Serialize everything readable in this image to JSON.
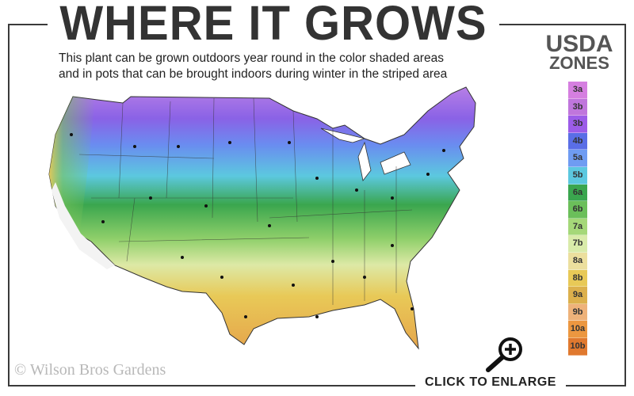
{
  "title": "WHERE IT GROWS",
  "subtitle_line1": "This plant can be grown outdoors year round in the color shaded areas",
  "subtitle_line2": "and in pots that can be brought indoors during winter in the striped area",
  "legend": {
    "title_line1": "USDA",
    "title_line2": "ZONES",
    "zones": [
      {
        "label": "3a",
        "color": "#d57fe0"
      },
      {
        "label": "3b",
        "color": "#c076dc"
      },
      {
        "label": "3b",
        "color": "#9c5ce8"
      },
      {
        "label": "4b",
        "color": "#5a6ee6"
      },
      {
        "label": "5a",
        "color": "#6f9cf2"
      },
      {
        "label": "5b",
        "color": "#5cc8df"
      },
      {
        "label": "6a",
        "color": "#3aa64e"
      },
      {
        "label": "6b",
        "color": "#6bbf5a"
      },
      {
        "label": "7a",
        "color": "#a5d879"
      },
      {
        "label": "7b",
        "color": "#d9ebaa"
      },
      {
        "label": "8a",
        "color": "#ecdf9e"
      },
      {
        "label": "8b",
        "color": "#e8c957"
      },
      {
        "label": "9a",
        "color": "#dcb04c"
      },
      {
        "label": "9b",
        "color": "#eeb27a"
      },
      {
        "label": "10a",
        "color": "#ec9740"
      },
      {
        "label": "10b",
        "color": "#e0792f"
      }
    ]
  },
  "copyright": "© Wilson Bros Gardens",
  "enlarge_label": "CLICK TO ENLARGE",
  "icons": {
    "enlarge": "magnifier-plus-icon"
  }
}
